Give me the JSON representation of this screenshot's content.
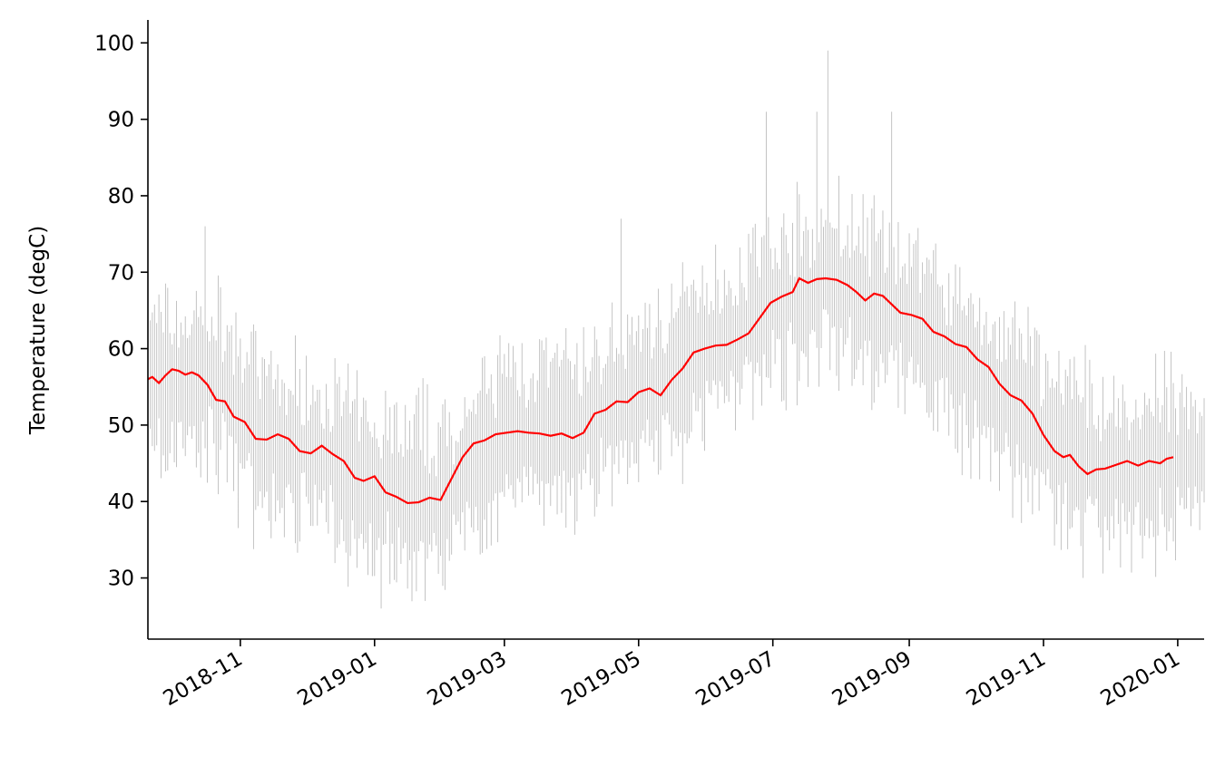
{
  "chart_data": {
    "type": "line",
    "title": "",
    "xlabel": "",
    "ylabel": "Temperature (degC)",
    "xlim": [
      "2018-09-20",
      "2020-01-13"
    ],
    "ylim": [
      22,
      103
    ],
    "grid": false,
    "legend": "none",
    "x_ticks": [
      "2018-11",
      "2019-01",
      "2019-03",
      "2019-05",
      "2019-07",
      "2019-09",
      "2019-11",
      "2020-01"
    ],
    "y_ticks": [
      30,
      40,
      50,
      60,
      70,
      80,
      90,
      100
    ],
    "raw_series": {
      "color": "#bdbdbd",
      "description_points": [
        {
          "date": "2018-09-20",
          "value": 56
        },
        {
          "date": "2018-10-01",
          "value": 56
        },
        {
          "date": "2018-10-20",
          "value": 56
        },
        {
          "date": "2018-11-10",
          "value": 48
        },
        {
          "date": "2018-12-10",
          "value": 46
        },
        {
          "date": "2019-01-01",
          "value": 42
        },
        {
          "date": "2019-02-01",
          "value": 40
        },
        {
          "date": "2019-03-01",
          "value": 49
        },
        {
          "date": "2019-04-01",
          "value": 49
        },
        {
          "date": "2019-05-01",
          "value": 54
        },
        {
          "date": "2019-06-01",
          "value": 60
        },
        {
          "date": "2019-07-01",
          "value": 65
        },
        {
          "date": "2019-07-25",
          "value": 69
        },
        {
          "date": "2019-08-15",
          "value": 66
        },
        {
          "date": "2019-09-01",
          "value": 64
        },
        {
          "date": "2019-10-01",
          "value": 57
        },
        {
          "date": "2019-11-01",
          "value": 49
        },
        {
          "date": "2019-12-01",
          "value": 44
        },
        {
          "date": "2020-01-13",
          "value": 46
        }
      ],
      "extremes": [
        {
          "date": "2019-07-26",
          "value": 99
        },
        {
          "date": "2019-07-21",
          "value": 91
        },
        {
          "date": "2019-08-24",
          "value": 91
        },
        {
          "date": "2019-06-28",
          "value": 91
        },
        {
          "date": "2019-01-04",
          "value": 26
        },
        {
          "date": "2019-01-24",
          "value": 27
        },
        {
          "date": "2019-11-19",
          "value": 30
        },
        {
          "date": "2018-10-16",
          "value": 76
        },
        {
          "date": "2019-04-23",
          "value": 77
        }
      ]
    },
    "series": [
      {
        "color": "#ff0000",
        "x": [
          "2018-09-20",
          "2018-09-22",
          "2018-09-25",
          "2018-09-28",
          "2018-10-01",
          "2018-10-04",
          "2018-10-07",
          "2018-10-10",
          "2018-10-13",
          "2018-10-17",
          "2018-10-21",
          "2018-10-25",
          "2018-10-29",
          "2018-11-03",
          "2018-11-08",
          "2018-11-13",
          "2018-11-18",
          "2018-11-23",
          "2018-11-28",
          "2018-12-03",
          "2018-12-08",
          "2018-12-13",
          "2018-12-18",
          "2018-12-23",
          "2018-12-27",
          "2019-01-01",
          "2019-01-06",
          "2019-01-11",
          "2019-01-16",
          "2019-01-21",
          "2019-01-26",
          "2019-01-31",
          "2019-02-05",
          "2019-02-10",
          "2019-02-15",
          "2019-02-20",
          "2019-02-25",
          "2019-03-02",
          "2019-03-07",
          "2019-03-12",
          "2019-03-17",
          "2019-03-22",
          "2019-03-27",
          "2019-04-01",
          "2019-04-06",
          "2019-04-11",
          "2019-04-16",
          "2019-04-21",
          "2019-04-26",
          "2019-05-01",
          "2019-05-06",
          "2019-05-11",
          "2019-05-16",
          "2019-05-21",
          "2019-05-26",
          "2019-05-31",
          "2019-06-05",
          "2019-06-10",
          "2019-06-15",
          "2019-06-20",
          "2019-06-25",
          "2019-06-30",
          "2019-07-05",
          "2019-07-10",
          "2019-07-13",
          "2019-07-17",
          "2019-07-21",
          "2019-07-25",
          "2019-07-30",
          "2019-08-04",
          "2019-08-08",
          "2019-08-12",
          "2019-08-16",
          "2019-08-20",
          "2019-08-24",
          "2019-08-28",
          "2019-09-02",
          "2019-09-07",
          "2019-09-12",
          "2019-09-17",
          "2019-09-22",
          "2019-09-27",
          "2019-10-02",
          "2019-10-07",
          "2019-10-12",
          "2019-10-17",
          "2019-10-22",
          "2019-10-27",
          "2019-11-01",
          "2019-11-06",
          "2019-11-10",
          "2019-11-13",
          "2019-11-17",
          "2019-11-21",
          "2019-11-25",
          "2019-11-29",
          "2019-12-04",
          "2019-12-09",
          "2019-12-14",
          "2019-12-19",
          "2019-12-24",
          "2019-12-27",
          "2019-12-30"
        ],
        "values": [
          56,
          56.3,
          55.5,
          56.5,
          57.3,
          57.1,
          56.6,
          56.9,
          56.5,
          55.3,
          53.3,
          53.1,
          51.1,
          50.4,
          48.2,
          48.1,
          48.8,
          48.2,
          46.6,
          46.3,
          47.3,
          46.2,
          45.3,
          43.1,
          42.7,
          43.3,
          41.2,
          40.6,
          39.8,
          39.9,
          40.5,
          40.2,
          43,
          45.8,
          47.6,
          48,
          48.8,
          49,
          49.2,
          49,
          48.9,
          48.6,
          48.9,
          48.3,
          49,
          51.5,
          52,
          53.1,
          53,
          54.3,
          54.8,
          53.9,
          55.9,
          57.4,
          59.5,
          60,
          60.4,
          60.5,
          61.2,
          62,
          64,
          66,
          66.8,
          67.4,
          69.2,
          68.6,
          69.1,
          69.2,
          69,
          68.3,
          67.4,
          66.3,
          67.2,
          66.9,
          65.8,
          64.7,
          64.4,
          63.9,
          62.2,
          61.6,
          60.6,
          60.2,
          58.6,
          57.6,
          55.4,
          53.9,
          53.2,
          51.5,
          48.7,
          46.6,
          45.8,
          46.1,
          44.6,
          43.6,
          44.2,
          44.3,
          44.8,
          45.3,
          44.7,
          45.3,
          45,
          45.6,
          45.8
        ]
      }
    ]
  }
}
